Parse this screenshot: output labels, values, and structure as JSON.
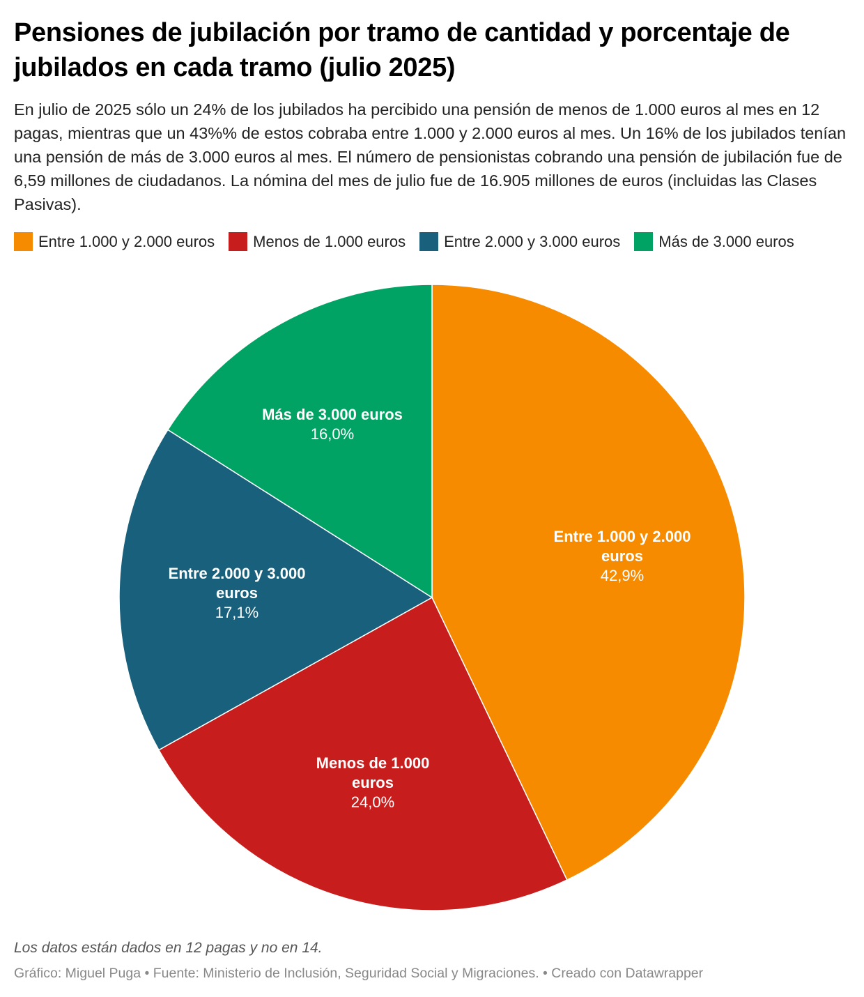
{
  "title": "Pensiones de jubilación por tramo de cantidad y porcentaje de jubilados en cada tramo (julio 2025)",
  "subtitle": "En julio de 2025 sólo un 24% de los jubilados ha percibido una pensión de menos de 1.000 euros al mes en 12 pagas, mientras que un 43%% de estos cobraba entre 1.000 y 2.000 euros al mes. Un 16% de los jubilados tenían una pensión de más de 3.000 euros al mes. El número de pensionistas cobrando una pensión de jubilación fue de 6,59 millones de ciudadanos. La nómina del mes de julio fue de 16.905 millones de euros (incluidas las Clases Pasivas).",
  "legend": [
    {
      "label": "Entre 1.000 y 2.000 euros",
      "color": "#F68B00"
    },
    {
      "label": "Menos de 1.000 euros",
      "color": "#C71E1D"
    },
    {
      "label": "Entre 2.000 y 3.000 euros",
      "color": "#18607B"
    },
    {
      "label": "Más de 3.000 euros",
      "color": "#00A364"
    }
  ],
  "chart_data": {
    "type": "pie",
    "start": "top, clockwise",
    "slices": [
      {
        "label": "Entre 1.000 y 2.000 euros",
        "label_lines": [
          "Entre 1.000 y 2.000",
          "euros"
        ],
        "value": 42.9,
        "value_label": "42,9%",
        "color": "#F68B00"
      },
      {
        "label": "Menos de 1.000 euros",
        "label_lines": [
          "Menos de 1.000",
          "euros"
        ],
        "value": 24.0,
        "value_label": "24,0%",
        "color": "#C71E1D"
      },
      {
        "label": "Entre 2.000 y 3.000 euros",
        "label_lines": [
          "Entre 2.000 y 3.000",
          "euros"
        ],
        "value": 17.1,
        "value_label": "17,1%",
        "color": "#18607B"
      },
      {
        "label": "Más de 3.000 euros",
        "label_lines": [
          "Más de 3.000 euros"
        ],
        "value": 16.0,
        "value_label": "16,0%",
        "color": "#00A364"
      }
    ]
  },
  "notes": "Los datos están dados en 12 pagas y no en 14.",
  "credit": "Gráfico: Miguel Puga • Fuente: Ministerio de Inclusión, Seguridad Social y Migraciones. • Creado con Datawrapper"
}
